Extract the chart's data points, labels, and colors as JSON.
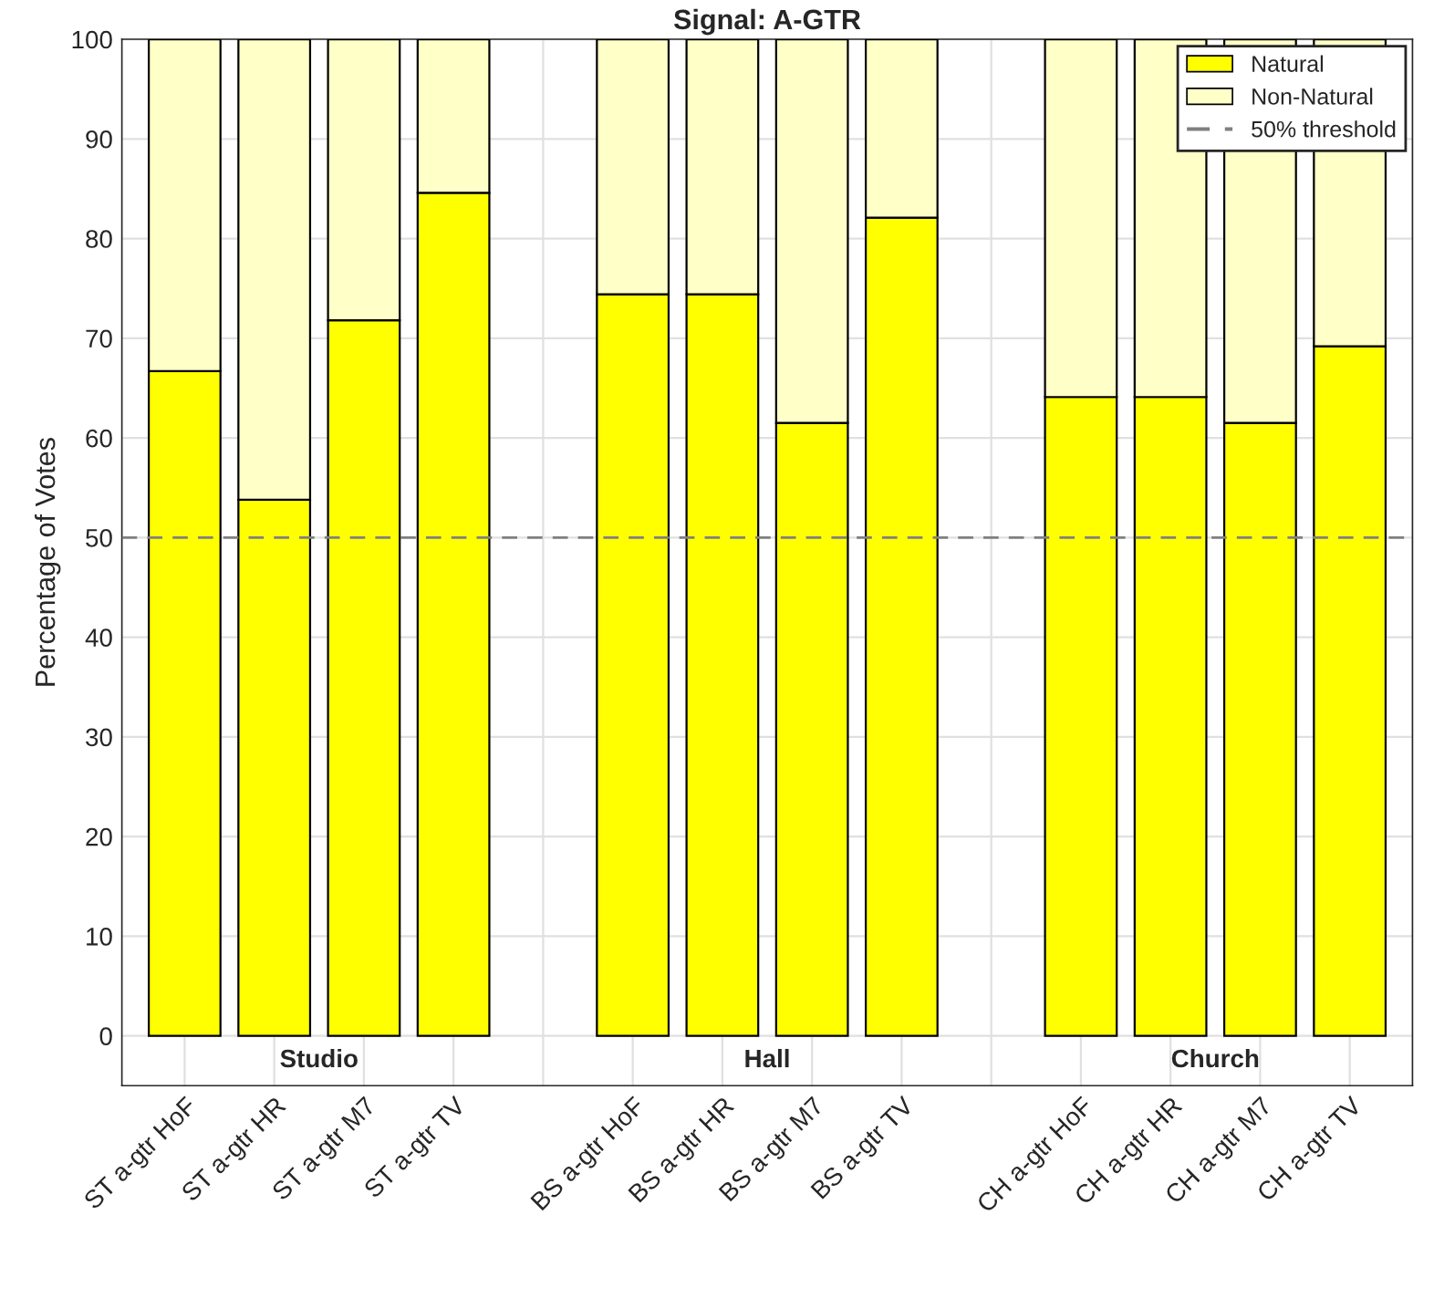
{
  "chart_data": {
    "type": "bar",
    "title": "Signal: A-GTR",
    "ylabel": "Percentage of Votes",
    "categories": [
      "ST a-gtr HoF",
      "ST a-gtr HR",
      "ST a-gtr M7",
      "ST a-gtr TV",
      null,
      "BS a-gtr HoF",
      "BS a-gtr HR",
      "BS a-gtr M7",
      "BS a-gtr TV",
      null,
      "CH a-gtr HoF",
      "CH a-gtr HR",
      "CH a-gtr M7",
      "CH a-gtr TV"
    ],
    "series": [
      {
        "name": "Natural",
        "color": "#ffff00",
        "values": [
          66.7,
          53.8,
          71.8,
          84.6,
          null,
          74.4,
          74.4,
          61.5,
          82.1,
          null,
          64.1,
          64.1,
          61.5,
          69.2
        ]
      },
      {
        "name": "Non-Natural",
        "color": "#ffffc8",
        "values": [
          33.3,
          46.2,
          28.2,
          15.4,
          null,
          25.6,
          25.6,
          38.5,
          17.9,
          null,
          35.9,
          35.9,
          38.5,
          30.8
        ]
      }
    ],
    "stacked": true,
    "ylim": [
      -5,
      100
    ],
    "yticks": [
      0,
      10,
      20,
      30,
      40,
      50,
      60,
      70,
      80,
      90,
      100
    ],
    "grid": true,
    "legend": "top right",
    "ref_lines": [
      {
        "axis": "y",
        "value": 50,
        "label": "50% threshold",
        "color": "#808080",
        "line_style": "dashed"
      }
    ],
    "annotations": [
      "Studio",
      "Hall",
      "Church"
    ]
  }
}
